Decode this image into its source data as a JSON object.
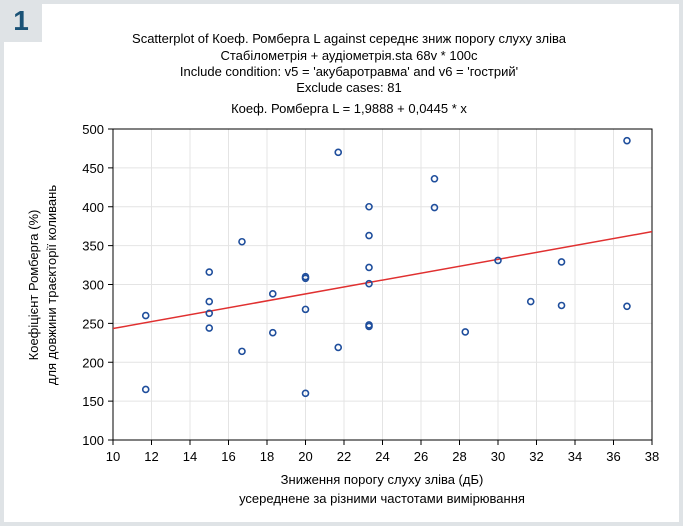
{
  "figure": {
    "badge": "1"
  },
  "chart_data": {
    "type": "scatter",
    "title_lines": [
      "Scatterplot of Коеф. Ромберга L against середнє зниж порогу слуху зліва",
      "Стабілометрія + аудіометрія.sta 68v * 100c",
      "Include condition: v5 = 'акубаротравма' and v6 = 'гострий'",
      "Exclude cases: 81",
      "Коеф. Ромберга L = 1,9888 + 0,0445 * x"
    ],
    "xlabel_lines": [
      "Зниження порогу слуху зліва (дБ)",
      "усереднене за різними частотами вимірювання"
    ],
    "ylabel_lines": [
      "Коефіцієнт Ромберга (%)",
      "для довжини траєкторії коливань"
    ],
    "xlim": [
      10,
      38
    ],
    "ylim": [
      100,
      500
    ],
    "xticks": [
      10,
      12,
      14,
      16,
      18,
      20,
      22,
      24,
      26,
      28,
      30,
      32,
      34,
      36,
      38
    ],
    "yticks": [
      100,
      150,
      200,
      250,
      300,
      350,
      400,
      450,
      500
    ],
    "grid": true,
    "regression": {
      "intercept": 198.88,
      "slope": 4.45
    },
    "point_color": "#1f4e9c",
    "line_color": "#e03030",
    "points": [
      {
        "x": 11.7,
        "y": 165
      },
      {
        "x": 11.7,
        "y": 260
      },
      {
        "x": 15.0,
        "y": 316
      },
      {
        "x": 15.0,
        "y": 278
      },
      {
        "x": 15.0,
        "y": 263
      },
      {
        "x": 15.0,
        "y": 244
      },
      {
        "x": 16.7,
        "y": 355
      },
      {
        "x": 16.7,
        "y": 214
      },
      {
        "x": 18.3,
        "y": 288
      },
      {
        "x": 18.3,
        "y": 238
      },
      {
        "x": 20.0,
        "y": 310
      },
      {
        "x": 20.0,
        "y": 308
      },
      {
        "x": 20.0,
        "y": 268
      },
      {
        "x": 20.0,
        "y": 160
      },
      {
        "x": 21.7,
        "y": 470
      },
      {
        "x": 21.7,
        "y": 219
      },
      {
        "x": 23.3,
        "y": 400
      },
      {
        "x": 23.3,
        "y": 363
      },
      {
        "x": 23.3,
        "y": 322
      },
      {
        "x": 23.3,
        "y": 301
      },
      {
        "x": 23.3,
        "y": 248
      },
      {
        "x": 23.3,
        "y": 246
      },
      {
        "x": 26.7,
        "y": 436
      },
      {
        "x": 26.7,
        "y": 399
      },
      {
        "x": 28.3,
        "y": 239
      },
      {
        "x": 30.0,
        "y": 331
      },
      {
        "x": 31.7,
        "y": 278
      },
      {
        "x": 33.3,
        "y": 329
      },
      {
        "x": 33.3,
        "y": 273
      },
      {
        "x": 36.7,
        "y": 485
      },
      {
        "x": 36.7,
        "y": 272
      }
    ]
  }
}
